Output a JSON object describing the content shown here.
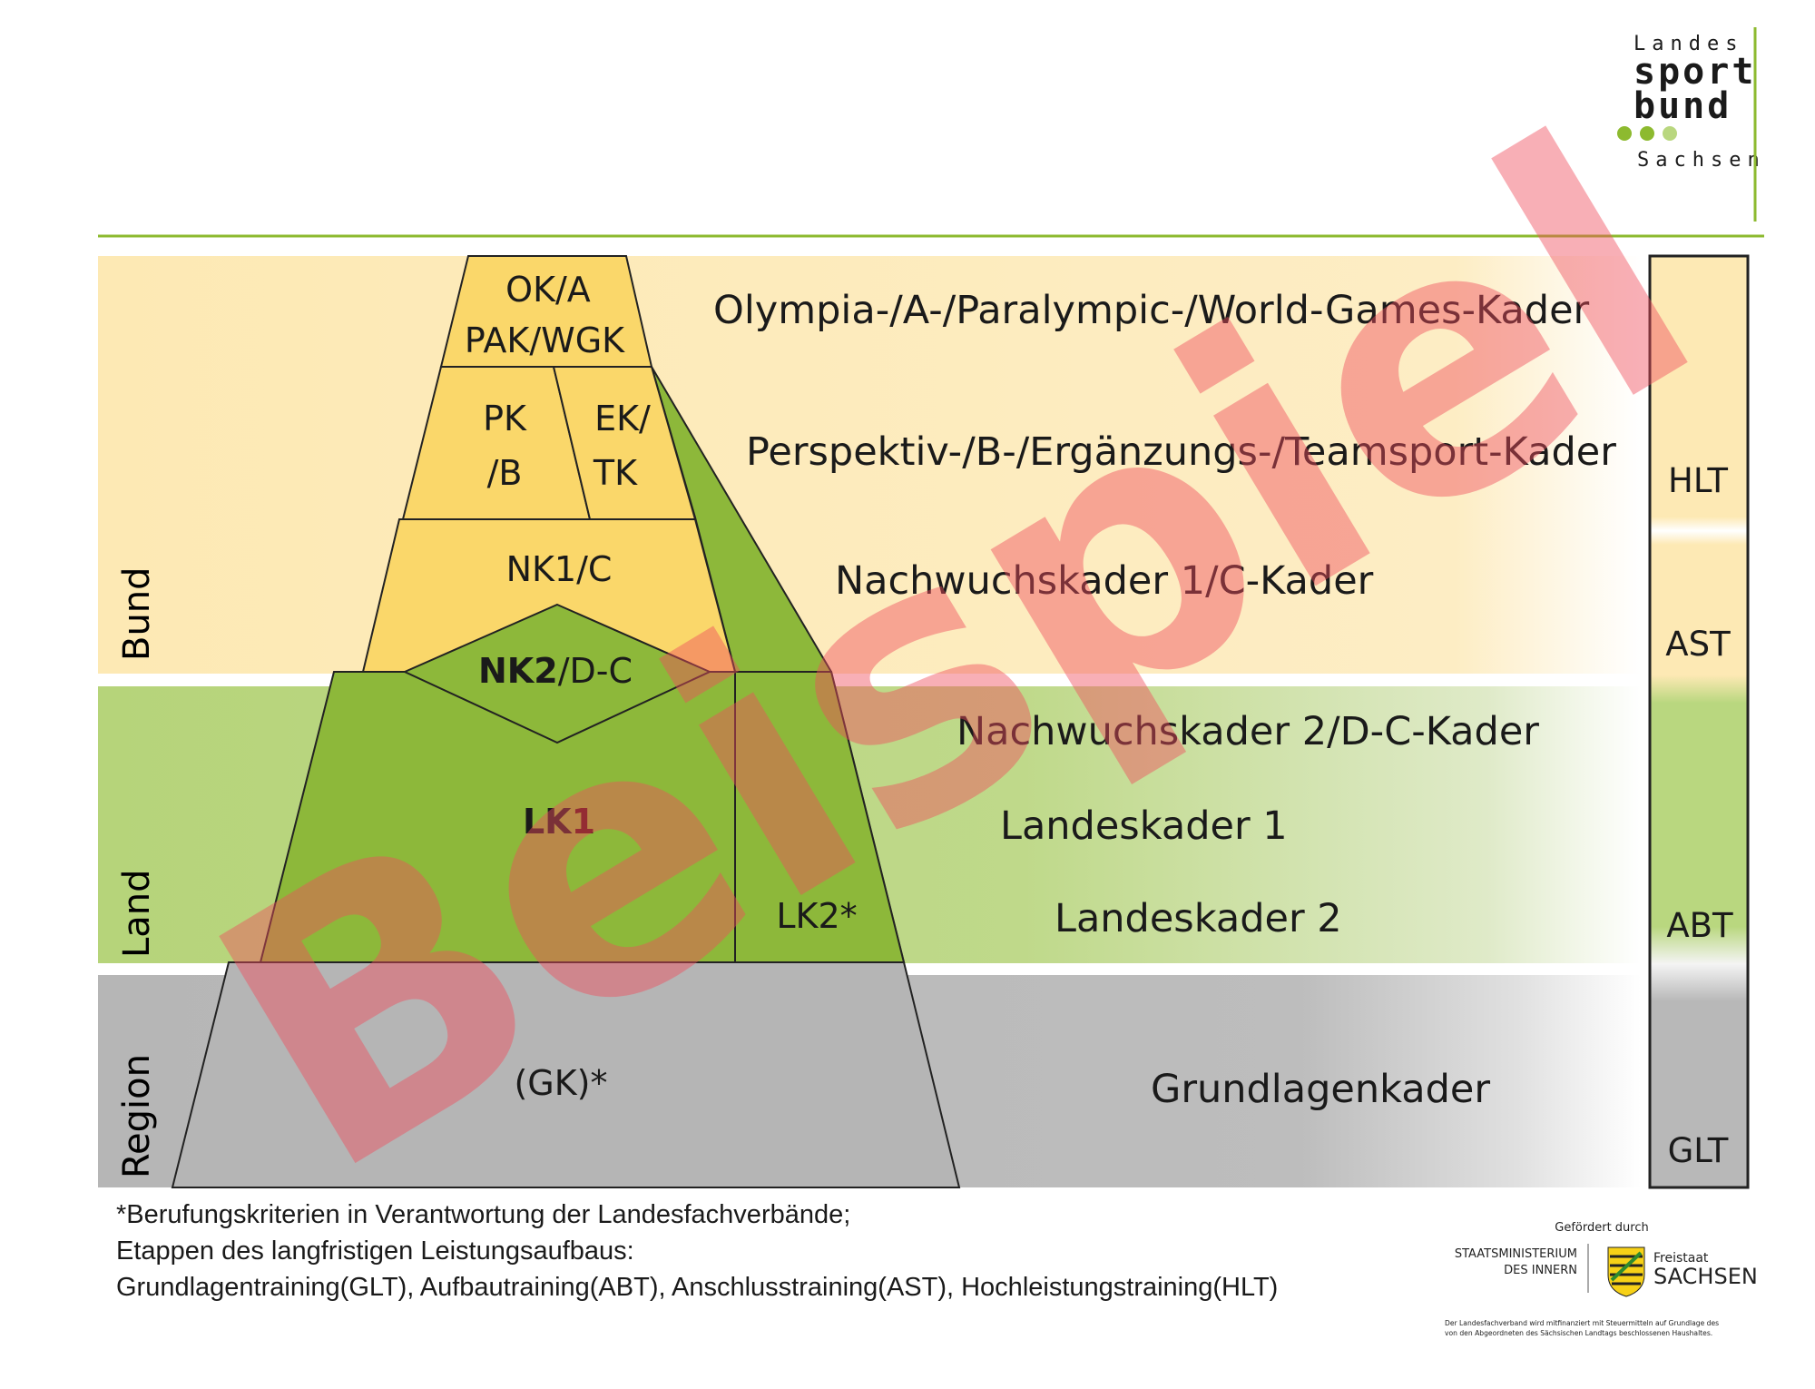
{
  "logo": {
    "line1": "Landes",
    "line2": "sport",
    "line3": "bund",
    "line4": "Sachsen",
    "accent_color": "#8dba2f"
  },
  "levels": {
    "bund": "Bund",
    "land": "Land",
    "region": "Region"
  },
  "pyramid": {
    "ok_line1": "OK/A",
    "ok_line2": "PAK/WGK",
    "pk_line1": "PK",
    "pk_line2": "/B",
    "ek_line1": "EK/",
    "ek_line2": "TK",
    "nk1": "NK1/C",
    "nk2_bold": "NK2",
    "nk2_rest": "/D-C",
    "lk1_prefix": "LK",
    "lk1_digit": "1",
    "lk2": "LK2*",
    "gk": "(GK)*"
  },
  "descriptions": {
    "olympia": "Olympia-/A-/Paralympic-/World-Games-Kader",
    "perspektiv": "Perspektiv-/B-/Ergänzungs-/Teamsport-Kader",
    "nk1": "Nachwuchskader 1/C-Kader",
    "nk2": "Nachwuchskader 2/D-C-Kader",
    "lk1": "Landeskader 1",
    "lk2": "Landeskader 2",
    "gk": "Grundlagenkader"
  },
  "stages": {
    "hlt": "HLT",
    "ast": "AST",
    "abt": "ABT",
    "glt": "GLT"
  },
  "watermark": "Beispiel",
  "footnote": {
    "line1": "*Berufungskriterien in Verantwortung der Landesfachverbände;",
    "line2": "Etappen des langfristigen Leistungsaufbaus:",
    "line3": "Grundlagentraining(GLT), Aufbautraining(ABT), Anschlusstraining(AST), Hochleistungstraining(HLT)"
  },
  "funding": {
    "label": "Gefördert durch",
    "ministry_line1": "STAATSMINISTERIUM",
    "ministry_line2": "DES INNERN",
    "state_line1": "Freistaat",
    "state_line2": "SACHSEN",
    "note_line1": "Der Landesfachverband wird mitfinanziert mit Steuermitteln auf Grundlage des",
    "note_line2": "von den Abgeordneten des Sächsischen Landtags beschlossenen Haushaltes."
  },
  "colors": {
    "bund_band": "#fde9b4",
    "land_band": "#b9d77f",
    "region_band": "#b8b8b8",
    "yellow_block": "#fad76a",
    "green_block": "#8db83a",
    "grey_block": "#b5b5b5",
    "rule_green": "#8dba2f",
    "watermark": "#f04d5e"
  }
}
